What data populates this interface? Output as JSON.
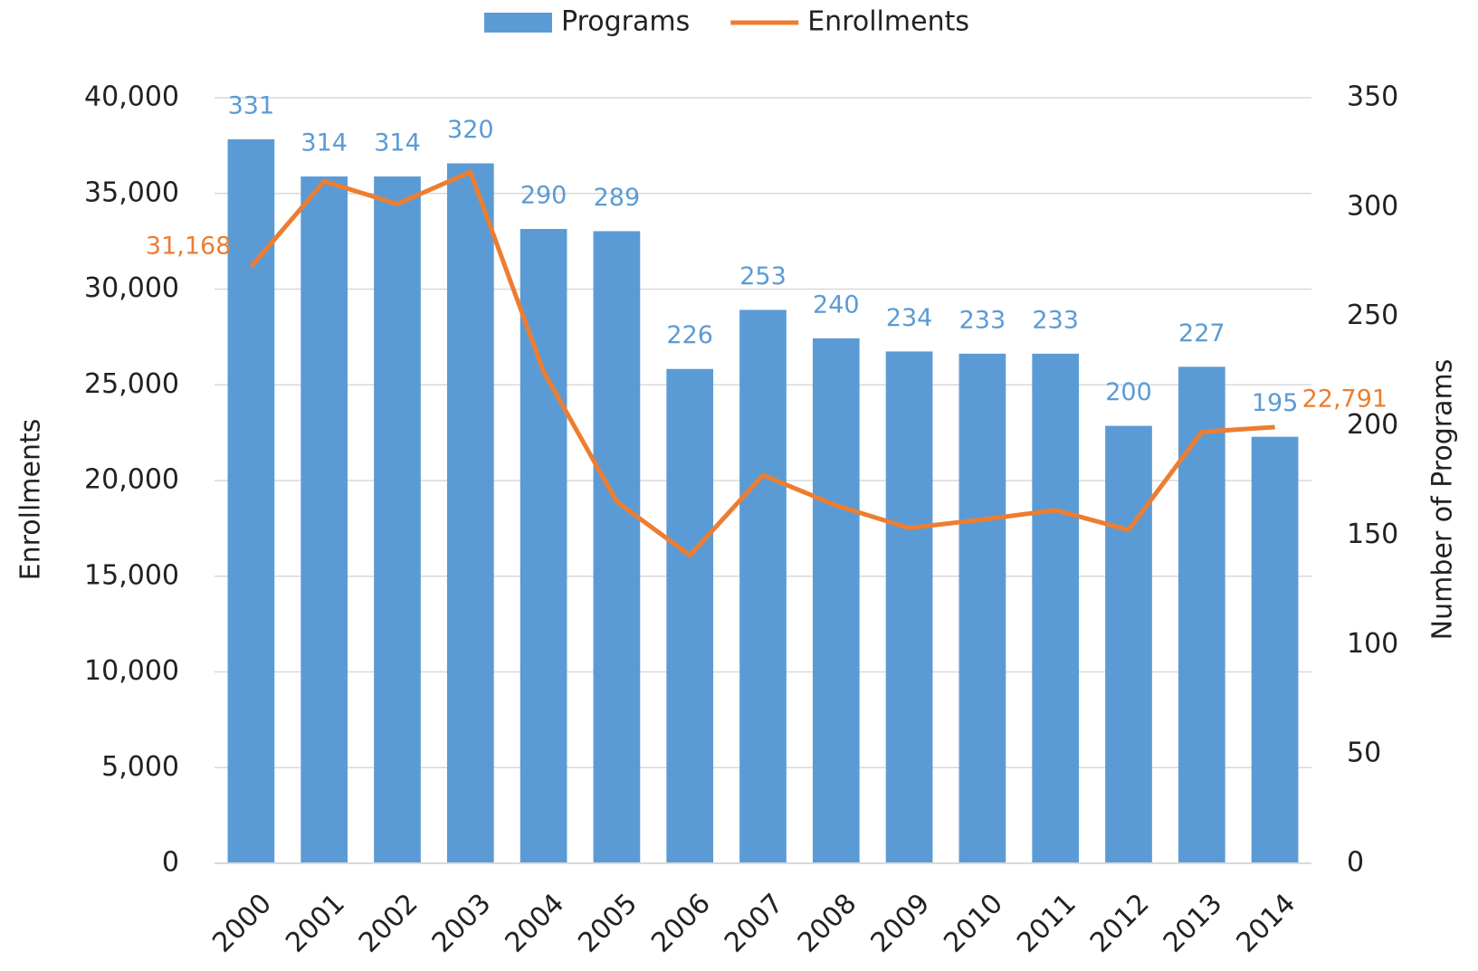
{
  "chart_data": {
    "type": "bar-line",
    "x_label": null,
    "y_label": "Enrollments",
    "y2_label": "Number of Programs",
    "categories": [
      "2000",
      "2001",
      "2002",
      "2003",
      "2004",
      "2005",
      "2006",
      "2007",
      "2008",
      "2009",
      "2010",
      "2011",
      "2012",
      "2013",
      "2014"
    ],
    "series": [
      {
        "name": "Programs",
        "type": "bar",
        "axis": "y2",
        "color": "#5b9bd5",
        "values": [
          331,
          314,
          314,
          320,
          290,
          289,
          226,
          253,
          240,
          234,
          233,
          233,
          200,
          227,
          195
        ]
      },
      {
        "name": "Enrollments",
        "type": "line",
        "axis": "y",
        "color": "#ed7d31",
        "values": [
          31168,
          35630,
          34450,
          36120,
          25690,
          18900,
          16090,
          20280,
          18700,
          17520,
          17960,
          18450,
          17420,
          22540,
          22791
        ],
        "value_labels": [
          "31,168",
          null,
          null,
          null,
          null,
          null,
          null,
          null,
          null,
          null,
          null,
          null,
          null,
          null,
          "22,791"
        ]
      }
    ],
    "ylim": [
      0,
      40000
    ],
    "yticks": [
      0,
      {
        "value": 5000,
        "label": "5,000"
      },
      {
        "value": 10000,
        "label": "10,000"
      },
      {
        "value": 15000,
        "label": "15,000"
      },
      {
        "value": 20000,
        "label": "20,000"
      },
      {
        "value": 25000,
        "label": "25,000"
      },
      {
        "value": 30000,
        "label": "30,000"
      },
      {
        "value": 35000,
        "label": "35,000"
      },
      {
        "value": 40000,
        "label": "40,000"
      }
    ],
    "y2lim": [
      0,
      350
    ],
    "y2ticks": [
      0,
      50,
      100,
      150,
      200,
      250,
      300,
      350
    ],
    "grid": true,
    "legend": "top"
  }
}
